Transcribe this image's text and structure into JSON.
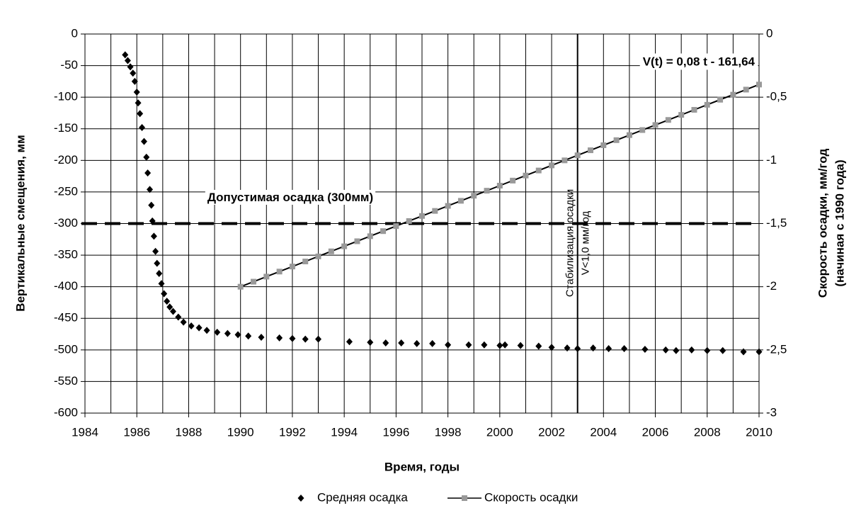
{
  "chart_data": {
    "type": "scatter-line",
    "xlabel": "Время, годы",
    "ylabel": "Вертикальные смещения, мм",
    "y2label": "Скорость осадки, мм/год",
    "y2label2": "(начиная с 1990 года)",
    "xlim": [
      1984,
      2010
    ],
    "xticks": [
      1984,
      1986,
      1988,
      1990,
      1992,
      1994,
      1996,
      1998,
      2000,
      2002,
      2004,
      2006,
      2008,
      2010
    ],
    "x_minor_ticks": [
      1985,
      1987,
      1989,
      1991,
      1993,
      1995,
      1997,
      1999,
      2001,
      2003,
      2005,
      2007,
      2009
    ],
    "ylim": [
      -600,
      0
    ],
    "yticks": [
      0,
      -50,
      -100,
      -150,
      -200,
      -250,
      -300,
      -350,
      -400,
      -450,
      -500,
      -550,
      -600
    ],
    "y2lim": [
      -3,
      0
    ],
    "y2ticks": [
      0,
      {
        "value": -0.5,
        "label": "-0,5"
      },
      -1,
      {
        "value": -1.5,
        "label": "-1,5"
      },
      -2,
      {
        "value": -2.5,
        "label": "-2,5"
      },
      -3
    ],
    "grid": true,
    "hline": -300,
    "hline_label": "Допустимая осадка (300мм)",
    "vline": 2003,
    "vline_label": "Стабилизация осадки",
    "vline_label2": "V<1,0 мм/год",
    "equation": "V(t) = 0,08 t - 161,64",
    "series": [
      {
        "name": "Средняя осадка",
        "color": "#000000",
        "marker": "diamond",
        "x": [
          1985.55,
          1985.65,
          1985.75,
          1985.85,
          1985.92,
          1986.0,
          1986.05,
          1986.12,
          1986.2,
          1986.28,
          1986.37,
          1986.42,
          1986.5,
          1986.56,
          1986.6,
          1986.66,
          1986.72,
          1986.78,
          1986.86,
          1986.95,
          1987.05,
          1987.16,
          1987.27,
          1987.4,
          1987.6,
          1987.8,
          1988.1,
          1988.4,
          1988.7,
          1989.1,
          1989.5,
          1989.9,
          1990.3,
          1990.8,
          1991.5,
          1992.0,
          1992.5,
          1993.0,
          1994.2,
          1995.0,
          1995.6,
          1996.2,
          1996.8,
          1997.4,
          1998.0,
          1998.8,
          1999.4,
          2000.0,
          2000.2,
          2000.8,
          2001.5,
          2002.0,
          2002.6,
          2003.0,
          2003.6,
          2004.2,
          2004.8,
          2005.6,
          2006.4,
          2006.8,
          2007.4,
          2008.0,
          2008.6,
          2009.4,
          2010.0
        ],
        "values": [
          -33,
          -42,
          -52,
          -62,
          -75,
          -92,
          -109,
          -126,
          -148,
          -170,
          -195,
          -220,
          -246,
          -271,
          -296,
          -320,
          -344,
          -363,
          -379,
          -395,
          -411,
          -423,
          -432,
          -439,
          -448,
          -456,
          -462,
          -465,
          -469,
          -472,
          -474,
          -476,
          -478,
          -480,
          -481,
          -482,
          -483,
          -483,
          -487,
          -488,
          -489,
          -489,
          -490,
          -490,
          -492,
          -492,
          -492,
          -493,
          -492,
          -493,
          -494,
          -496,
          -497,
          -498,
          -497,
          -498,
          -498,
          -499,
          -500,
          -501,
          -500,
          -501,
          -501,
          -503,
          -503
        ]
      },
      {
        "name": "Скорость осадки",
        "color": "#000000",
        "marker_color": "#999999",
        "axis": "y2",
        "x": [
          1990,
          1990.5,
          1991,
          1991.5,
          1992,
          1992.5,
          1993,
          1993.5,
          1994,
          1994.5,
          1995,
          1995.5,
          1996,
          1996.5,
          1997,
          1997.5,
          1998,
          1998.5,
          1999,
          1999.5,
          2000,
          2000.5,
          2001,
          2001.5,
          2002,
          2002.5,
          2003,
          2003.5,
          2004,
          2004.5,
          2005,
          2005.5,
          2006,
          2006.5,
          2007,
          2007.5,
          2008,
          2008.5,
          2009,
          2009.5,
          2010
        ],
        "values": [
          -2.0,
          -1.96,
          -1.92,
          -1.88,
          -1.84,
          -1.8,
          -1.76,
          -1.72,
          -1.68,
          -1.64,
          -1.6,
          -1.56,
          -1.52,
          -1.48,
          -1.44,
          -1.4,
          -1.36,
          -1.32,
          -1.28,
          -1.24,
          -1.2,
          -1.16,
          -1.12,
          -1.08,
          -1.04,
          -1.0,
          -0.96,
          -0.92,
          -0.88,
          -0.84,
          -0.8,
          -0.76,
          -0.72,
          -0.68,
          -0.64,
          -0.6,
          -0.56,
          -0.52,
          -0.48,
          -0.44,
          -0.4
        ]
      }
    ]
  }
}
